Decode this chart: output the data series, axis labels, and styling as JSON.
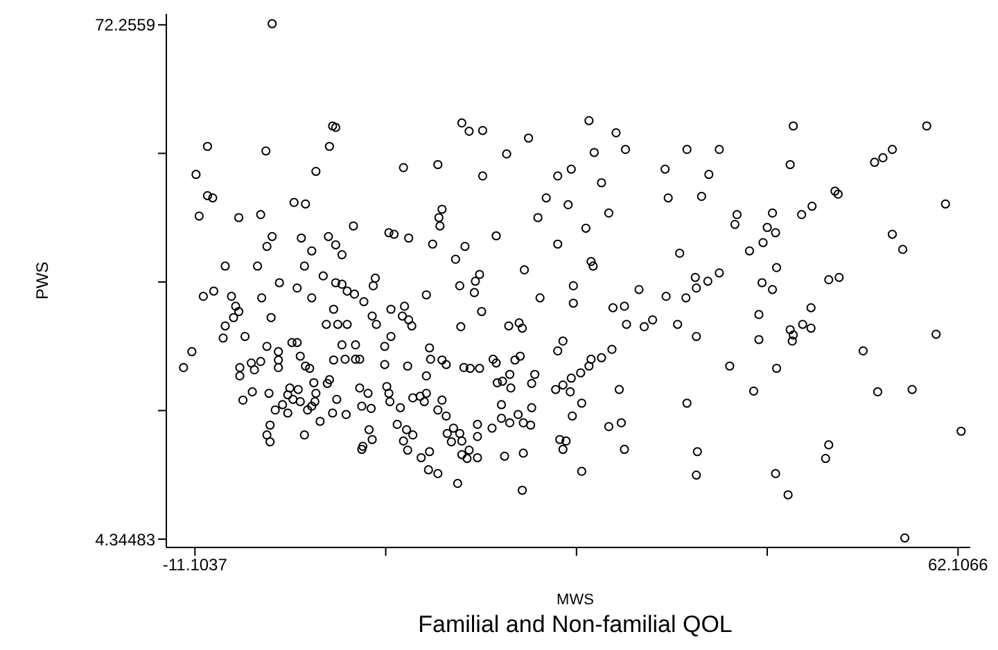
{
  "chart_data": {
    "type": "scatter",
    "title": "Familial and Non-familial QOL",
    "xlabel": "MWS",
    "ylabel": "PWS",
    "xlim": [
      -13.85,
      63.28
    ],
    "ylim": [
      3.25,
      73.7
    ],
    "xticks": [
      -11.1037,
      {
        "value": 7.2,
        "label": null
      },
      {
        "value": 25.5,
        "label": null
      },
      {
        "value": 43.8,
        "label": null
      },
      62.1066
    ],
    "yticks": [
      4.34483,
      {
        "value": 21.323,
        "label": null
      },
      {
        "value": 38.3,
        "label": null
      },
      {
        "value": 55.278,
        "label": null
      },
      72.2559
    ],
    "grid": false,
    "marker": "circle",
    "x": [
      -3.7,
      2.1,
      2.4,
      -9.9,
      -4.3,
      1.8,
      -11.0,
      0.5,
      8.9,
      12.2,
      -9.9,
      -9.4,
      -1.6,
      -0.5,
      12.6,
      -10.7,
      -6.9,
      -4.8,
      12.3,
      12.4,
      4.1,
      7.5,
      8.0,
      9.4,
      11.7,
      -3.7,
      -4.2,
      -0.9,
      1.7,
      2.4,
      3.0,
      0.1,
      -8.2,
      -5.1,
      -0.6,
      1.2,
      6.2,
      6.0,
      -3.0,
      2.4,
      3.0,
      14.5,
      15.2,
      16.5,
      26.7,
      29.3,
      20.9,
      18.8,
      27.2,
      30.2,
      36.1,
      16.5,
      23.7,
      25.0,
      27.9,
      34.0,
      38.2,
      22.6,
      24.7,
      34.3,
      37.5,
      21.8,
      28.6,
      26.4,
      17.8,
      23.7,
      14.8,
      13.9,
      35.4,
      20.5,
      26.9,
      27.1,
      16.2,
      36.9,
      46.3,
      59.1,
      39.2,
      55.8,
      46.0,
      54.1,
      54.9,
      50.3,
      50.6,
      60.9,
      48.1,
      47.1,
      40.9,
      40.7,
      44.3,
      43.8,
      44.6,
      43.4,
      42.1,
      55.8,
      56.8,
      44.7,
      39.2,
      50.7,
      -10.3,
      -9.3,
      -7.6,
      -4.7,
      -1.3,
      0.1,
      3.5,
      4.2,
      5.1,
      11.1,
      -7.2,
      -6.9,
      -7.4,
      -8.2,
      -8.4,
      -3.8,
      2.2,
      1.5,
      2.6,
      3.5,
      5.9,
      6.3,
      7.7,
      9.0,
      8.8,
      9.4,
      9.7,
      -6.3,
      -11.4,
      -12.2,
      -4.2,
      -3.1,
      -1.8,
      -1.3,
      -1.0,
      3.0,
      4.3,
      7.1,
      7.7,
      11.4,
      -6.8,
      -6.8,
      -5.7,
      -5.4,
      -4.8,
      -3.1,
      -3.1,
      -0.5,
      -0.1,
      2.2,
      3.3,
      4.3,
      4.7,
      7.1,
      9.3,
      11.5,
      11.1,
      -5.6,
      -6.5,
      -4.0,
      -2.0,
      -1.2,
      -2.2,
      -1.7,
      -1.0,
      0.3,
      1.6,
      1.8,
      0.5,
      0.4,
      2.5,
      4.7,
      5.5,
      7.3,
      7.5,
      7.6,
      8.6,
      9.8,
      10.5,
      10.9,
      11.1,
      12.2,
      -2.7,
      -3.4,
      -2.2,
      -0.3,
      0.1,
      2.1,
      3.4,
      4.9,
      5.8,
      -3.9,
      -4.2,
      -3.9,
      -0.6,
      0.9,
      5.6,
      5.9,
      5.0,
      4.9,
      8.3,
      9.2,
      9.8,
      8.9,
      9.3,
      10.6,
      11.4,
      11.3,
      12.2,
      14.3,
      15.8,
      15.7,
      25.2,
      22.0,
      25.2,
      31.5,
      34.1,
      36.0,
      37.0,
      38.1,
      16.4,
      14.4,
      19.0,
      20.0,
      20.3,
      29.0,
      30.1,
      30.3,
      32.0,
      32.8,
      35.2,
      37.0,
      23.7,
      24.2,
      28.9,
      17.5,
      17.8,
      19.6,
      20.1,
      12.6,
      13.0,
      14.7,
      15.3,
      16.2,
      26.9,
      26.7,
      27.9,
      25.9,
      25.0,
      19.1,
      21.5,
      17.9,
      18.4,
      19.2,
      21.2,
      23.5,
      24.2,
      24.9,
      29.6,
      26.0,
      36.1,
      18.3,
      21.2,
      18.3,
      19.9,
      19.1,
      20.4,
      21.1,
      17.4,
      16.0,
      25.1,
      28.6,
      29.8,
      12.6,
      13.0,
      13.7,
      13.1,
      14.3,
      13.5,
      14.5,
      16.0,
      23.9,
      24.5,
      24.2,
      30.1,
      37.1,
      14.5,
      15.2,
      15.0,
      16.0,
      18.6,
      20.4,
      26.0,
      14.1,
      20.3,
      37.0,
      43.3,
      44.3,
      49.7,
      43.0,
      48.0,
      47.2,
      48.0,
      46.0,
      46.3,
      46.2,
      43.0,
      60.0,
      53.0,
      40.2,
      44.7,
      42.5,
      54.4,
      57.7,
      62.4,
      49.7,
      49.4,
      44.6,
      45.8,
      57.0
    ],
    "series": [
      {
        "color": "#000000",
        "values": [
          72.4,
          58.9,
          58.7,
          56.2,
          55.6,
          56.2,
          52.5,
          52.9,
          53.4,
          53.8,
          49.7,
          49.4,
          48.8,
          48.6,
          47.9,
          47.0,
          46.8,
          47.2,
          46.8,
          45.7,
          45.7,
          44.8,
          44.6,
          44.1,
          43.3,
          44.3,
          43.0,
          44.1,
          44.3,
          43.2,
          41.9,
          42.4,
          40.4,
          40.4,
          40.4,
          39.1,
          38.8,
          37.8,
          38.2,
          38.2,
          38.0,
          59.3,
          58.2,
          58.3,
          59.6,
          58.0,
          57.3,
          55.2,
          55.4,
          55.8,
          55.8,
          52.3,
          52.3,
          53.2,
          51.4,
          53.2,
          52.5,
          49.4,
          48.5,
          49.4,
          49.6,
          46.8,
          47.4,
          45.4,
          44.4,
          43.3,
          43.0,
          41.3,
          42.1,
          39.9,
          41.0,
          40.4,
          39.3,
          38.9,
          58.9,
          58.9,
          55.8,
          55.8,
          53.8,
          54.1,
          54.7,
          50.3,
          49.9,
          48.6,
          48.3,
          47.2,
          47.2,
          45.9,
          47.4,
          45.5,
          44.8,
          43.5,
          42.4,
          44.6,
          42.6,
          40.2,
          39.5,
          38.9,
          36.4,
          37.1,
          36.4,
          36.2,
          37.5,
          36.2,
          37.1,
          36.7,
          35.7,
          36.6,
          35.1,
          34.4,
          33.6,
          32.5,
          30.9,
          33.6,
          34.7,
          32.7,
          32.7,
          32.7,
          33.8,
          32.7,
          34.7,
          35.1,
          33.8,
          33.3,
          32.5,
          31.1,
          29.1,
          27.0,
          29.8,
          29.1,
          30.3,
          30.3,
          28.5,
          30.0,
          30.0,
          29.8,
          31.1,
          29.6,
          27.0,
          25.9,
          27.6,
          26.7,
          27.8,
          28.0,
          27.0,
          27.2,
          26.9,
          28.0,
          28.1,
          28.1,
          28.1,
          27.4,
          27.2,
          28.1,
          25.9,
          23.8,
          22.7,
          23.6,
          24.3,
          24.1,
          23.4,
          22.8,
          22.5,
          25.0,
          24.9,
          25.4,
          23.6,
          22.5,
          22.8,
          24.3,
          23.6,
          24.5,
          23.6,
          22.5,
          21.7,
          23.0,
          23.2,
          22.5,
          23.6,
          21.4,
          22.1,
          21.4,
          21.0,
          21.4,
          21.9,
          21.0,
          20.8,
          21.9,
          21.6,
          19.4,
          18.1,
          17.2,
          18.1,
          19.9,
          18.8,
          17.5,
          16.6,
          16.2,
          19.5,
          18.8,
          18.1,
          17.3,
          16.1,
          15.1,
          15.9,
          13.5,
          13.0,
          37.8,
          38.4,
          36.9,
          37.8,
          36.2,
          35.5,
          37.3,
          36.4,
          36.2,
          37.5,
          38.4,
          34.4,
          32.4,
          32.5,
          32.9,
          32.2,
          34.9,
          35.1,
          32.7,
          32.4,
          33.3,
          32.7,
          31.1,
          29.2,
          30.5,
          29.4,
          28.1,
          27.6,
          28.0,
          28.5,
          28.0,
          27.4,
          27.0,
          26.9,
          26.9,
          28.1,
          27.2,
          28.3,
          26.3,
          25.6,
          26.1,
          26.1,
          25.0,
          25.2,
          24.3,
          24.9,
          24.1,
          24.7,
          23.8,
          24.1,
          22.3,
          22.3,
          22.1,
          21.7,
          20.3,
          20.8,
          19.7,
          19.7,
          19.4,
          19.0,
          19.5,
          20.6,
          19.2,
          19.7,
          22.7,
          20.6,
          19.0,
          18.3,
          18.3,
          17.2,
          17.3,
          17.9,
          17.5,
          17.3,
          16.2,
          16.2,
          15.9,
          15.5,
          16.1,
          15.0,
          15.1,
          15.3,
          15.7,
          13.3,
          11.7,
          10.8,
          12.8,
          38.2,
          37.3,
          38.6,
          34.0,
          34.9,
          32.7,
          32.2,
          32.0,
          31.3,
          30.5,
          30.7,
          31.4,
          29.2,
          27.2,
          26.9,
          23.9,
          23.8,
          24.1,
          18.6,
          16.8,
          15.0,
          13.0,
          10.2,
          4.5
        ]
      }
    ]
  }
}
